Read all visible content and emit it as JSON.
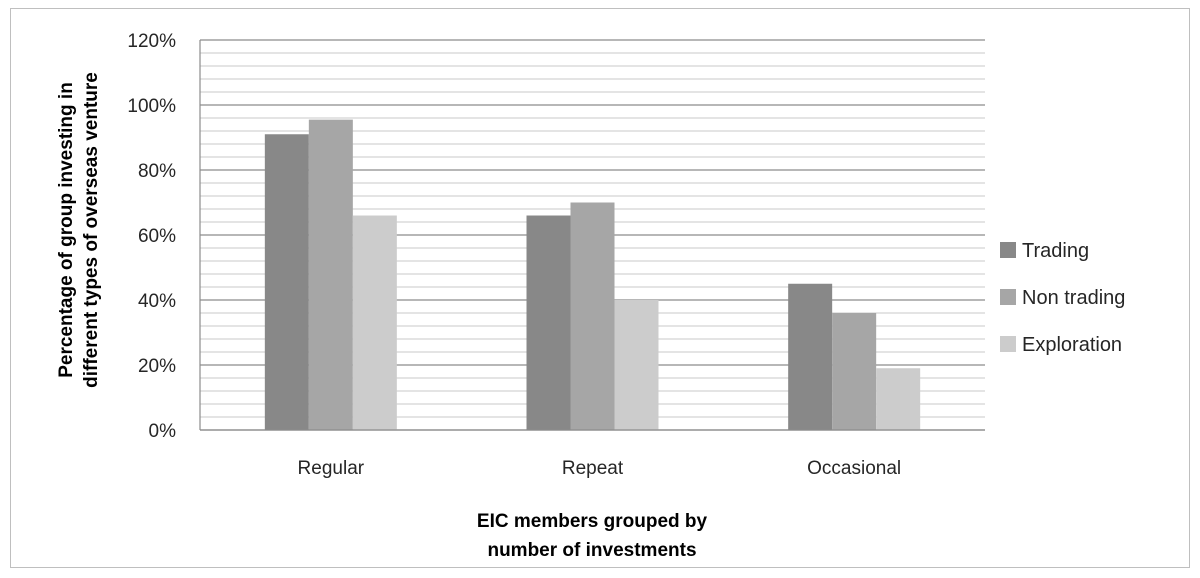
{
  "chart_data": {
    "type": "bar",
    "categories": [
      "Regular",
      "Repeat",
      "Occasional"
    ],
    "series": [
      {
        "name": "Trading",
        "values": [
          0.91,
          0.66,
          0.45
        ],
        "color": "#888888"
      },
      {
        "name": "Non trading",
        "values": [
          0.955,
          0.7,
          0.36
        ],
        "color": "#a6a6a6"
      },
      {
        "name": "Exploration",
        "values": [
          0.66,
          0.4,
          0.19
        ],
        "color": "#cccccc"
      }
    ],
    "ylim": [
      0,
      1.2
    ],
    "yticks": [
      "0%",
      "20%",
      "40%",
      "60%",
      "80%",
      "100%",
      "120%"
    ],
    "ylabel_lines": [
      "Percentage of group investing in",
      "different types of overseas venture"
    ],
    "xlabel_lines": [
      "EIC members grouped by",
      "number of investments"
    ],
    "legend_position": "right",
    "grid": true
  }
}
